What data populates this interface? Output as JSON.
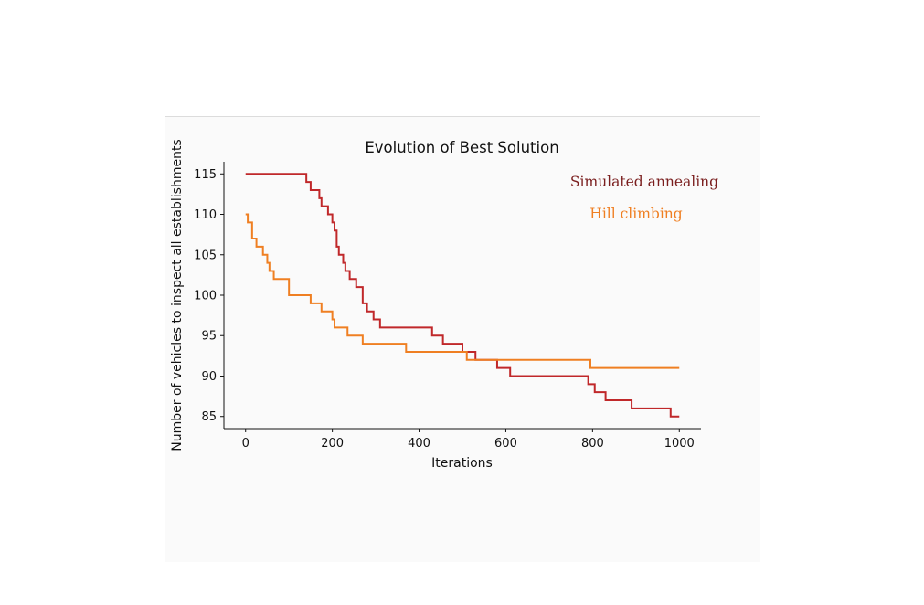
{
  "chart_data": {
    "type": "line",
    "title": "Evolution of Best Solution",
    "xlabel": "Iterations",
    "ylabel": "Number of vehicles to inspect all establishments",
    "xlim": [
      -50,
      1050
    ],
    "ylim": [
      83.5,
      116.5
    ],
    "xticks": [
      0,
      200,
      400,
      600,
      800,
      1000
    ],
    "yticks": [
      85,
      90,
      95,
      100,
      105,
      110,
      115
    ],
    "grid": false,
    "legend_placement": "top-right",
    "series": [
      {
        "name": "Simulated annealing",
        "color": "#c0282a",
        "label_color": "#7a1e1e",
        "step_points": [
          [
            0,
            115
          ],
          [
            140,
            114
          ],
          [
            150,
            113
          ],
          [
            170,
            112
          ],
          [
            175,
            111
          ],
          [
            190,
            110
          ],
          [
            200,
            109
          ],
          [
            205,
            108
          ],
          [
            210,
            106
          ],
          [
            215,
            105
          ],
          [
            225,
            104
          ],
          [
            230,
            103
          ],
          [
            240,
            102
          ],
          [
            255,
            101
          ],
          [
            270,
            99
          ],
          [
            280,
            98
          ],
          [
            295,
            97
          ],
          [
            310,
            96
          ],
          [
            320,
            96
          ],
          [
            430,
            95
          ],
          [
            455,
            94
          ],
          [
            500,
            93
          ],
          [
            530,
            92
          ],
          [
            580,
            91
          ],
          [
            610,
            90
          ],
          [
            790,
            89
          ],
          [
            805,
            88
          ],
          [
            830,
            87
          ],
          [
            890,
            86
          ],
          [
            980,
            85
          ],
          [
            1000,
            85
          ]
        ]
      },
      {
        "name": "Hill climbing",
        "color": "#ef7f22",
        "label_color": "#ef7f22",
        "step_points": [
          [
            0,
            110
          ],
          [
            5,
            109
          ],
          [
            15,
            107
          ],
          [
            25,
            106
          ],
          [
            40,
            105
          ],
          [
            50,
            104
          ],
          [
            55,
            103
          ],
          [
            65,
            102
          ],
          [
            100,
            100
          ],
          [
            150,
            99
          ],
          [
            175,
            98
          ],
          [
            200,
            97
          ],
          [
            205,
            96
          ],
          [
            235,
            95
          ],
          [
            270,
            94
          ],
          [
            370,
            93
          ],
          [
            510,
            92
          ],
          [
            795,
            91
          ],
          [
            1000,
            91
          ]
        ]
      }
    ]
  }
}
